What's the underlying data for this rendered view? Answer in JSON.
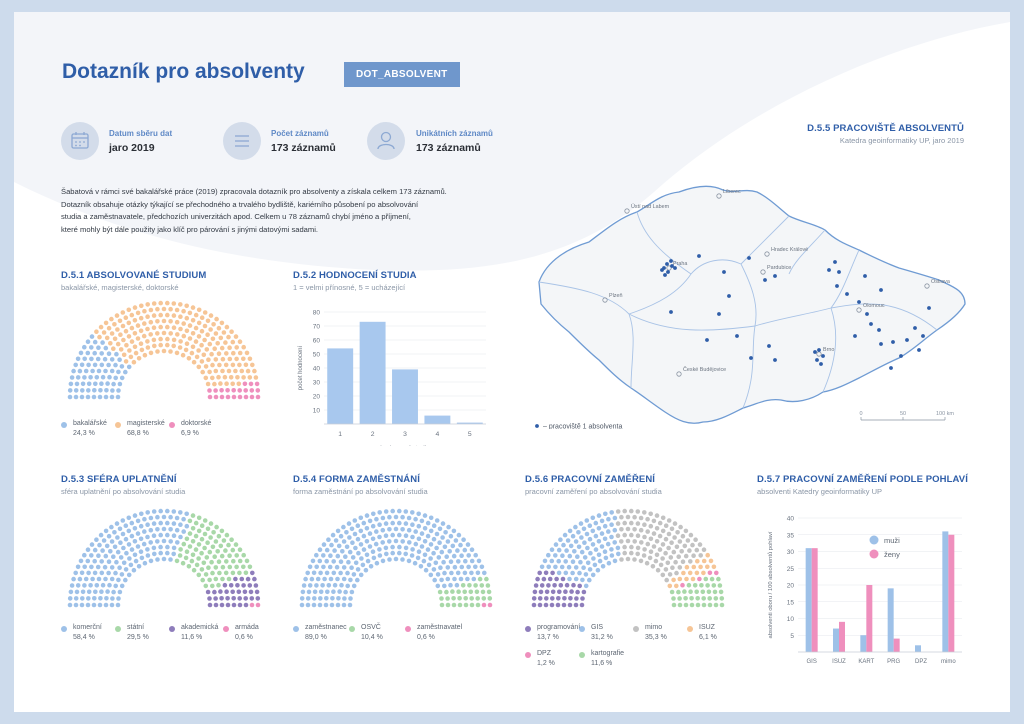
{
  "header": {
    "title": "Dotazník pro absolventy",
    "tag": "DOT_ABSOLVENT"
  },
  "stats": [
    {
      "icon": "calendar-icon",
      "label": "Datum sběru dat",
      "value": "jaro 2019"
    },
    {
      "icon": "list-icon",
      "label": "Počet záznamů",
      "value": "173 záznamů"
    },
    {
      "icon": "user-icon",
      "label": "Unikátních záznamů",
      "value": "173 záznamů"
    }
  ],
  "intro": {
    "lines": [
      "Šabatová v rámci své bakalářské práce (2019) zpracovala dotazník pro absolventy a získala celkem 173 záznamů.",
      "Dotazník obsahuje otázky týkající se přechodného a trvalého bydliště,  kariérního působení po absolvování",
      "studia a zaměstnavatele, předchozích univerzitách apod. Celkem u 78 záznamů chybí jméno a příjmení,",
      "které mohly být dále použity jako klíč pro párování s jinými datovými sadami."
    ]
  },
  "colors": {
    "blue": "#9ec1e8",
    "orange": "#f6c596",
    "pink": "#ef8fbd",
    "green": "#a8d8a8",
    "purple": "#8e7dbb",
    "grey": "#c2c2c2",
    "title": "#2f5ea8"
  },
  "chart_data": [
    {
      "id": "d51",
      "type": "parliament",
      "title": "D.5.1 ABSOLVOVANÉ STUDIUM",
      "subtitle": "bakalářské, magisterské, doktorské",
      "series": [
        {
          "name": "bakalářské",
          "pct": "24,3 %",
          "value": 24.3,
          "color": "#9ec1e8"
        },
        {
          "name": "magisterské",
          "pct": "68,8 %",
          "value": 68.8,
          "color": "#f6c596"
        },
        {
          "name": "doktorské",
          "pct": "6,9 %",
          "value": 6.9,
          "color": "#ef8fbd"
        }
      ]
    },
    {
      "id": "d52",
      "type": "bar",
      "title": "D.5.2 HODNOCENÍ STUDIA",
      "subtitle": "1 = velmi přínosné, 5 = ucházející",
      "xlabel": "hodnocení studia",
      "ylabel": "počet hodnocení",
      "categories": [
        "1",
        "2",
        "3",
        "4",
        "5"
      ],
      "values": [
        54,
        73,
        39,
        6,
        1
      ],
      "ylim": [
        0,
        80
      ],
      "yticks": [
        "10",
        "20",
        "30",
        "40",
        "50",
        "60",
        "70",
        "80"
      ],
      "color": "#a8c8ee"
    },
    {
      "id": "d53",
      "type": "parliament",
      "title": "D.5.3 SFÉRA UPLATNĚNÍ",
      "subtitle": "sféra uplatnění po absolvování studia",
      "series": [
        {
          "name": "komerční",
          "pct": "58,4 %",
          "value": 58.4,
          "color": "#9ec1e8"
        },
        {
          "name": "státní",
          "pct": "29,5 %",
          "value": 29.5,
          "color": "#a8d8a8"
        },
        {
          "name": "akademická",
          "pct": "11,6 %",
          "value": 11.6,
          "color": "#8e7dbb"
        },
        {
          "name": "armáda",
          "pct": "0,6 %",
          "value": 0.6,
          "color": "#ef8fbd"
        }
      ]
    },
    {
      "id": "d54",
      "type": "parliament",
      "title": "D.5.4 FORMA ZAMĚSTNÁNÍ",
      "subtitle": "forma zaměstnání po absolvování studia",
      "series": [
        {
          "name": "zaměstnanec",
          "pct": "89,0 %",
          "value": 89.0,
          "color": "#9ec1e8"
        },
        {
          "name": "OSVČ",
          "pct": "10,4 %",
          "value": 10.4,
          "color": "#a8d8a8"
        },
        {
          "name": "zaměstnavatel",
          "pct": "0,6 %",
          "value": 0.6,
          "color": "#ef8fbd"
        }
      ]
    },
    {
      "id": "d56",
      "type": "parliament",
      "title": "D.5.6 PRACOVNÍ ZAMĚŘENÍ",
      "subtitle": "pracovní zaměření po absolvování studia",
      "series": [
        {
          "name": "programování",
          "pct": "13,7 %",
          "value": 13.7,
          "color": "#8e7dbb"
        },
        {
          "name": "GIS",
          "pct": "31,2 %",
          "value": 31.2,
          "color": "#9ec1e8"
        },
        {
          "name": "mimo",
          "pct": "35,3 %",
          "value": 35.3,
          "color": "#c2c2c2"
        },
        {
          "name": "ISUZ",
          "pct": "6,1 %",
          "value": 6.1,
          "color": "#f6c596"
        },
        {
          "name": "DPZ",
          "pct": "1,2 %",
          "value": 1.2,
          "color": "#ef8fbd"
        },
        {
          "name": "kartografie",
          "pct": "11,6 %",
          "value": 11.6,
          "color": "#a8d8a8"
        }
      ]
    },
    {
      "id": "d57",
      "type": "bar",
      "title": "D.5.7 PRACOVNÍ ZAMĚŘENÍ PODLE POHLAVÍ",
      "subtitle": "absolventi Katedry geoinformatiky UP",
      "ylabel": "absolventi oboru / 100 absolventů pohlaví",
      "categories": [
        "GIS",
        "ISUZ",
        "KART",
        "PRG",
        "DPZ",
        "mimo"
      ],
      "ylim": [
        0,
        40
      ],
      "yticks": [
        "5",
        "10",
        "15",
        "20",
        "25",
        "30",
        "35",
        "40"
      ],
      "legend": "top-right",
      "series": [
        {
          "name": "muži",
          "values": [
            31,
            7,
            5,
            19,
            2,
            36
          ],
          "color": "#9ec1e8"
        },
        {
          "name": "ženy",
          "values": [
            31,
            9,
            20,
            4,
            0,
            35
          ],
          "color": "#ef8fbd"
        }
      ]
    }
  ],
  "map": {
    "title": "D.5.5 PRACOVIŠTĚ ABSOLVENTŮ",
    "subtitle": "Katedra geoinformatiky UP, jaro 2019",
    "legend": "– pracoviště 1 absolventa",
    "scale_labels": [
      "0",
      "50",
      "100 km"
    ],
    "cities": [
      "Ústí nad Labem",
      "Liberec",
      "Praha",
      "Hradec Králové",
      "Pardubice",
      "Plzeň",
      "Ostrava",
      "Olomouc",
      "Brno",
      "České Budějovice"
    ]
  }
}
